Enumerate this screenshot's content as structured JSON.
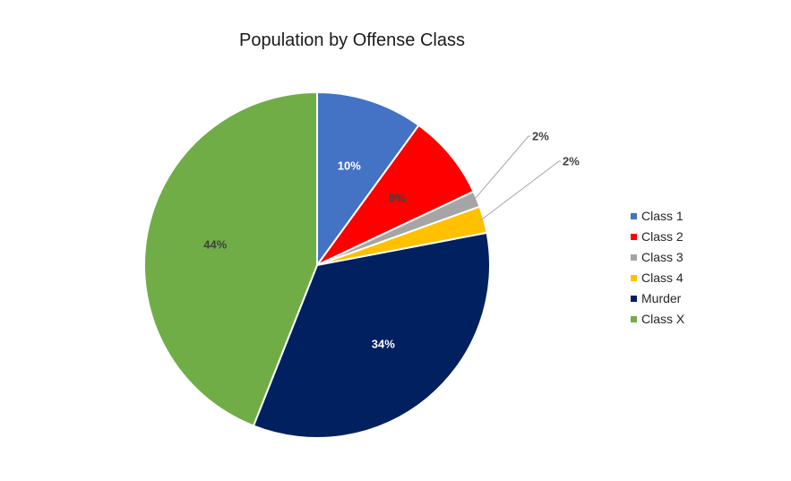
{
  "chart_data": {
    "type": "pie",
    "title": "Population by Offense Class",
    "legend_position": "right",
    "slices": [
      {
        "name": "Class 1",
        "value": 10,
        "label": "10%",
        "color": "#4472c4",
        "label_color": "#ffffff"
      },
      {
        "name": "Class 2",
        "value": 8,
        "label": "8%",
        "color": "#ff0000",
        "label_color": "#404040"
      },
      {
        "name": "Class 3",
        "value": 1.5,
        "label": "2%",
        "color": "#a5a5a5",
        "label_color": "#404040"
      },
      {
        "name": "Class 4",
        "value": 2.5,
        "label": "2%",
        "color": "#ffc000",
        "label_color": "#404040"
      },
      {
        "name": "Murder",
        "value": 34,
        "label": "34%",
        "color": "#002060",
        "label_color": "#ffffff"
      },
      {
        "name": "Class X",
        "value": 44,
        "label": "44%",
        "color": "#70ad47",
        "label_color": "#404040"
      }
    ]
  }
}
